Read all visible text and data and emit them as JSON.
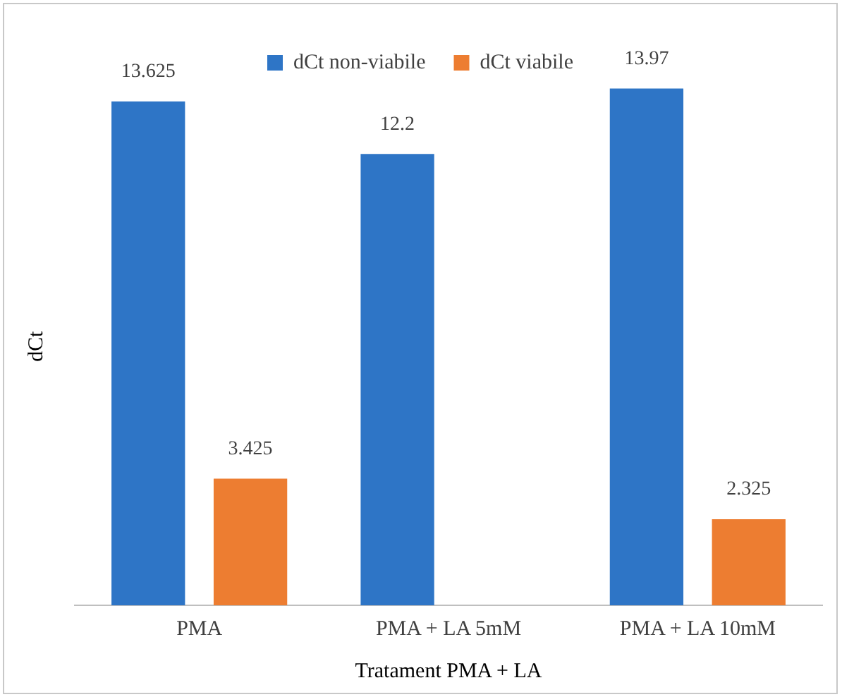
{
  "chart_data": {
    "type": "bar",
    "xlabel": "Tratament PMA + LA",
    "ylabel": "dCt",
    "categories": [
      "PMA",
      "PMA + LA 5mM",
      "PMA + LA 10mM"
    ],
    "series": [
      {
        "name": "dCt non-viabile",
        "color": "#2e75c6",
        "values": [
          13.625,
          12.2,
          13.97
        ]
      },
      {
        "name": "dCt viabile",
        "color": "#ed7d31",
        "values": [
          3.425,
          null,
          2.325
        ]
      }
    ],
    "data_labels": true,
    "legend": "top",
    "grid": false,
    "tick_labels": "x"
  }
}
